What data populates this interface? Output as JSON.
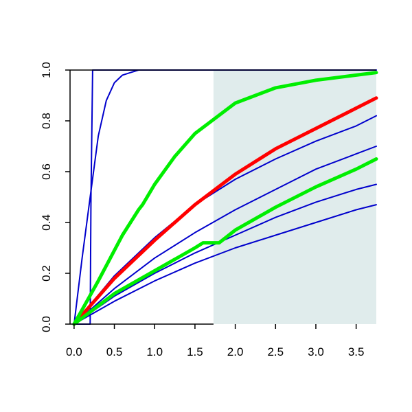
{
  "chart_data": {
    "type": "line",
    "title": "",
    "xlabel": "",
    "ylabel": "",
    "xlim": [
      -0.05,
      3.75
    ],
    "ylim": [
      0,
      1
    ],
    "x_ticks": [
      "0.0",
      "0.5",
      "1.0",
      "1.5",
      "2.0",
      "2.5",
      "3.0",
      "3.5"
    ],
    "y_ticks": [
      "0.0",
      "0.2",
      "0.4",
      "0.6",
      "0.8",
      "1.0"
    ],
    "grid": false,
    "legend": "none",
    "shaded_region": {
      "x_start": 1.73,
      "x_end": 3.75,
      "color": "#e0ecec"
    },
    "series": [
      {
        "color": "#0000cc",
        "style": "thin",
        "x": [
          0,
          0.2,
          0.21,
          0.23,
          3.75
        ],
        "y": [
          0,
          0,
          0.5,
          1.0,
          1.0
        ]
      },
      {
        "color": "#0000cc",
        "style": "thin",
        "x": [
          0,
          0.1,
          0.2,
          0.3,
          0.4,
          0.5,
          0.6,
          0.7,
          0.8,
          1.0,
          1.2,
          3.75
        ],
        "y": [
          0,
          0.26,
          0.5,
          0.74,
          0.88,
          0.95,
          0.98,
          0.99,
          1.0,
          1.0,
          1.0,
          1.0
        ]
      },
      {
        "color": "#0000cc",
        "style": "thin",
        "x": [
          0,
          0.5,
          1.0,
          1.5,
          2.0,
          2.5,
          3.0,
          3.5,
          3.75
        ],
        "y": [
          0,
          0.19,
          0.34,
          0.47,
          0.57,
          0.65,
          0.72,
          0.78,
          0.82
        ]
      },
      {
        "color": "#0000cc",
        "style": "thin",
        "x": [
          0,
          0.5,
          1.0,
          1.5,
          2.0,
          2.5,
          3.0,
          3.5,
          3.75
        ],
        "y": [
          0,
          0.14,
          0.26,
          0.36,
          0.45,
          0.53,
          0.61,
          0.67,
          0.7
        ]
      },
      {
        "color": "#0000cc",
        "style": "thin",
        "x": [
          0,
          0.5,
          1.0,
          1.5,
          2.0,
          2.5,
          3.0,
          3.5,
          3.75
        ],
        "y": [
          0,
          0.11,
          0.2,
          0.28,
          0.35,
          0.42,
          0.48,
          0.53,
          0.55
        ]
      },
      {
        "color": "#0000cc",
        "style": "thin",
        "x": [
          0,
          0.5,
          1.0,
          1.5,
          2.0,
          2.5,
          3.0,
          3.5,
          3.75
        ],
        "y": [
          0,
          0.09,
          0.17,
          0.24,
          0.3,
          0.35,
          0.4,
          0.45,
          0.47
        ]
      },
      {
        "color": "#ff0000",
        "style": "thick",
        "x": [
          0,
          0.5,
          1.0,
          1.5,
          2.0,
          2.5,
          3.0,
          3.5,
          3.75
        ],
        "y": [
          0,
          0.18,
          0.33,
          0.47,
          0.59,
          0.69,
          0.77,
          0.85,
          0.89
        ]
      },
      {
        "color": "#00ee00",
        "style": "thick",
        "x": [
          0,
          0.3,
          0.6,
          0.8,
          0.85,
          1.0,
          1.25,
          1.5,
          2.0,
          2.5,
          3.0,
          3.5,
          3.75
        ],
        "y": [
          0,
          0.17,
          0.35,
          0.45,
          0.47,
          0.55,
          0.66,
          0.75,
          0.87,
          0.93,
          0.96,
          0.98,
          0.99
        ]
      },
      {
        "color": "#00ee00",
        "style": "thick",
        "x": [
          0,
          0.5,
          1.0,
          1.5,
          1.6,
          1.8,
          2.0,
          2.5,
          3.0,
          3.5,
          3.75
        ],
        "y": [
          0,
          0.12,
          0.21,
          0.3,
          0.32,
          0.32,
          0.37,
          0.46,
          0.54,
          0.61,
          0.65
        ]
      }
    ]
  }
}
